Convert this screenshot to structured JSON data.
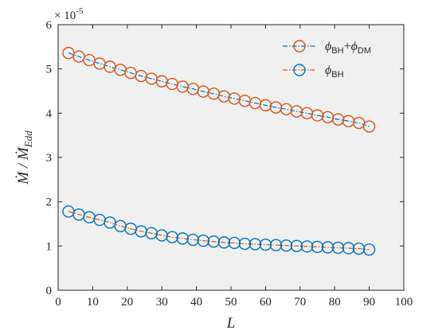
{
  "chart_data": {
    "type": "line",
    "xlabel": "L",
    "ylabel_main": "Ṁ / Ṁ",
    "ylabel_sub": "Edd",
    "exponent_base": "× 10",
    "exponent_power": "-5",
    "xlim": [
      0,
      100
    ],
    "ylim": [
      0,
      6
    ],
    "xticks": [
      0,
      10,
      20,
      30,
      40,
      50,
      60,
      70,
      80,
      90,
      100
    ],
    "yticks": [
      0,
      1,
      2,
      3,
      4,
      5,
      6
    ],
    "grid": false,
    "legend_position": "top-right",
    "x": [
      3,
      6,
      9,
      12,
      15,
      18,
      21,
      24,
      27,
      30,
      33,
      36,
      39,
      42,
      45,
      48,
      51,
      54,
      57,
      60,
      63,
      66,
      69,
      72,
      75,
      78,
      81,
      84,
      87,
      90
    ],
    "series": [
      {
        "legend_parts": [
          {
            "text": "ϕ",
            "style": "italic"
          },
          {
            "text": "BH",
            "style": "sub"
          },
          {
            "text": "+",
            "style": "normal"
          },
          {
            "text": "ϕ",
            "style": "italic"
          },
          {
            "text": "DM",
            "style": "sub"
          }
        ],
        "color": "#D95319",
        "line_color": "#0072BD",
        "values": [
          5.36,
          5.28,
          5.2,
          5.12,
          5.05,
          4.98,
          4.91,
          4.84,
          4.78,
          4.72,
          4.66,
          4.6,
          4.55,
          4.49,
          4.44,
          4.38,
          4.33,
          4.28,
          4.23,
          4.18,
          4.13,
          4.09,
          4.04,
          4.0,
          3.95,
          3.91,
          3.86,
          3.82,
          3.78,
          3.7
        ]
      },
      {
        "legend_parts": [
          {
            "text": "ϕ",
            "style": "italic"
          },
          {
            "text": "BH",
            "style": "sub"
          }
        ],
        "color": "#0072BD",
        "line_color": "#D95319",
        "values": [
          1.78,
          1.71,
          1.65,
          1.59,
          1.53,
          1.45,
          1.39,
          1.33,
          1.29,
          1.24,
          1.2,
          1.17,
          1.14,
          1.12,
          1.1,
          1.08,
          1.07,
          1.05,
          1.04,
          1.03,
          1.02,
          1.01,
          1.0,
          0.99,
          0.98,
          0.97,
          0.96,
          0.95,
          0.94,
          0.92
        ]
      }
    ]
  }
}
